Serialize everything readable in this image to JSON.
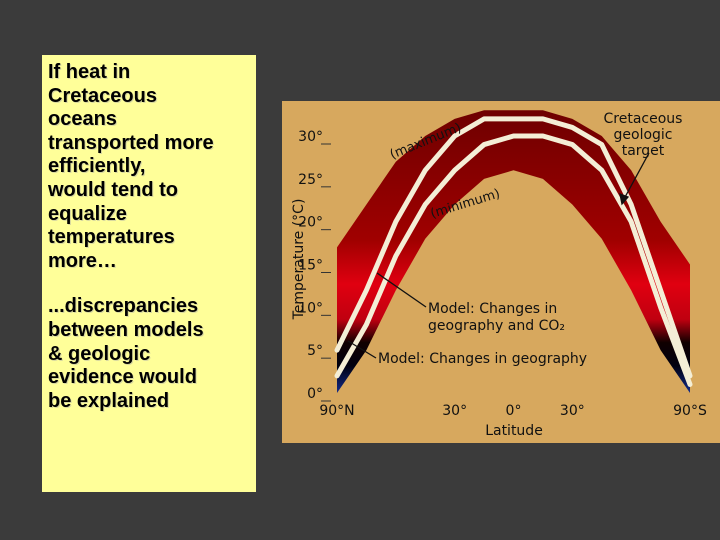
{
  "text_box": {
    "paragraphs": [
      [
        "If heat in",
        "Cretaceous",
        "oceans",
        "transported more",
        "efficiently,",
        "would tend to",
        "equalize",
        "temperatures",
        "more…"
      ],
      [
        "...discrepancies",
        "between models",
        "& geologic",
        "evidence would",
        "be explained"
      ]
    ]
  },
  "chart_data": {
    "type": "line",
    "ylabel": "Temperature (°C)",
    "xlabel": "Latitude",
    "xlim": [
      90,
      -90
    ],
    "ylim": [
      0,
      30
    ],
    "xticks": [
      {
        "value": 90,
        "label": "90°N"
      },
      {
        "value": 30,
        "label": "30°"
      },
      {
        "value": 0,
        "label": "0°"
      },
      {
        "value": -30,
        "label": "30°"
      },
      {
        "value": -90,
        "label": "90°S"
      }
    ],
    "yticks": [
      {
        "value": 0,
        "label": "0°"
      },
      {
        "value": 5,
        "label": "5°"
      },
      {
        "value": 10,
        "label": "10°"
      },
      {
        "value": 15,
        "label": "15°"
      },
      {
        "value": 20,
        "label": "20°"
      },
      {
        "value": 25,
        "label": "25°"
      },
      {
        "value": 30,
        "label": "30°"
      }
    ],
    "x": [
      90,
      75,
      60,
      45,
      30,
      15,
      0,
      -15,
      -30,
      -45,
      -60,
      -75,
      -90
    ],
    "band": {
      "upper": [
        17,
        22,
        27,
        30,
        32,
        33,
        33,
        33,
        32,
        30,
        26,
        20,
        15
      ],
      "lower": [
        0,
        5,
        12,
        18,
        22,
        25,
        26,
        25,
        22,
        18,
        12,
        5,
        0
      ]
    },
    "series": [
      {
        "color": "#f4eed6",
        "values": [
          5,
          12,
          20,
          26,
          30,
          32,
          32,
          32,
          31,
          29,
          22,
          12,
          2
        ]
      },
      {
        "color": "#f4eed6",
        "values": [
          2,
          8,
          16,
          22,
          26,
          29,
          30,
          30,
          29,
          26,
          20,
          10,
          1
        ]
      }
    ],
    "annotations": {
      "maximum": "(maximum)",
      "minimum": "(minimum)",
      "target": [
        "Cretaceous",
        "geologic",
        "target"
      ],
      "model_co2": [
        "Model: Changes in",
        "geography and CO₂"
      ],
      "model_geo": "Model: Changes in geography"
    }
  }
}
